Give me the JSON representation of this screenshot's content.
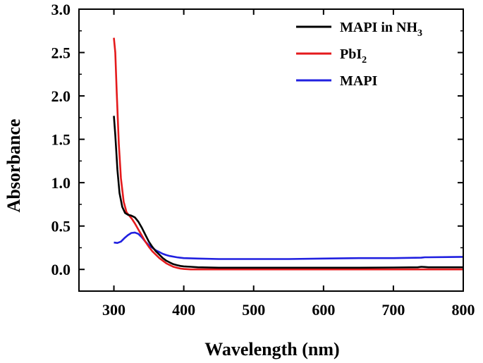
{
  "chart_data": {
    "type": "line",
    "title": "",
    "xlabel": "Wavelength (nm)",
    "ylabel": "Absorbance",
    "xlim": [
      250,
      800
    ],
    "ylim": [
      -0.25,
      3.0
    ],
    "xticks": [
      300,
      400,
      500,
      600,
      700,
      800
    ],
    "xtick_labels": [
      "300",
      "400",
      "500",
      "600",
      "700",
      "800"
    ],
    "yticks": [
      0.0,
      0.5,
      1.0,
      1.5,
      2.0,
      2.5,
      3.0
    ],
    "ytick_labels": [
      "0.0",
      "0.5",
      "1.0",
      "1.5",
      "2.0",
      "2.5",
      "3.0"
    ],
    "legend_position": "top-right",
    "series": [
      {
        "name": "MAPI in NH",
        "name_subscript": "3",
        "color": "#000000",
        "x": [
          300,
          302,
          305,
          308,
          312,
          316,
          320,
          325,
          330,
          335,
          340,
          345,
          350,
          355,
          360,
          365,
          370,
          375,
          380,
          385,
          390,
          395,
          400,
          410,
          420,
          450,
          500,
          550,
          600,
          650,
          700,
          735,
          740,
          745,
          750,
          800
        ],
        "y": [
          1.77,
          1.55,
          1.15,
          0.88,
          0.72,
          0.65,
          0.63,
          0.62,
          0.6,
          0.55,
          0.48,
          0.4,
          0.32,
          0.26,
          0.21,
          0.17,
          0.13,
          0.1,
          0.08,
          0.06,
          0.05,
          0.04,
          0.035,
          0.03,
          0.025,
          0.02,
          0.02,
          0.02,
          0.02,
          0.02,
          0.022,
          0.025,
          0.03,
          0.028,
          0.025,
          0.025
        ]
      },
      {
        "name": "PbI",
        "name_subscript": "2",
        "color": "#e41a1c",
        "x": [
          300,
          302,
          304,
          307,
          310,
          314,
          318,
          322,
          326,
          330,
          335,
          340,
          345,
          350,
          355,
          360,
          365,
          370,
          375,
          380,
          385,
          390,
          395,
          400,
          410,
          420,
          450,
          500,
          550,
          600,
          650,
          700,
          750,
          800
        ],
        "y": [
          2.67,
          2.5,
          2.05,
          1.45,
          1.05,
          0.78,
          0.66,
          0.62,
          0.58,
          0.53,
          0.46,
          0.39,
          0.32,
          0.26,
          0.21,
          0.17,
          0.13,
          0.1,
          0.07,
          0.05,
          0.03,
          0.02,
          0.01,
          0.005,
          0.0,
          0.0,
          0.0,
          0.0,
          0.0,
          0.0,
          0.0,
          0.0,
          0.0,
          0.0
        ]
      },
      {
        "name": "MAPI",
        "name_subscript": "",
        "color": "#2020e0",
        "x": [
          300,
          305,
          310,
          315,
          320,
          325,
          330,
          335,
          340,
          345,
          350,
          355,
          360,
          365,
          370,
          375,
          380,
          390,
          400,
          420,
          450,
          500,
          550,
          600,
          650,
          700,
          740,
          745,
          750,
          800
        ],
        "y": [
          0.31,
          0.305,
          0.32,
          0.36,
          0.395,
          0.42,
          0.425,
          0.41,
          0.37,
          0.32,
          0.28,
          0.25,
          0.22,
          0.2,
          0.18,
          0.165,
          0.155,
          0.14,
          0.13,
          0.125,
          0.12,
          0.12,
          0.12,
          0.125,
          0.13,
          0.13,
          0.135,
          0.14,
          0.14,
          0.145
        ]
      }
    ]
  }
}
